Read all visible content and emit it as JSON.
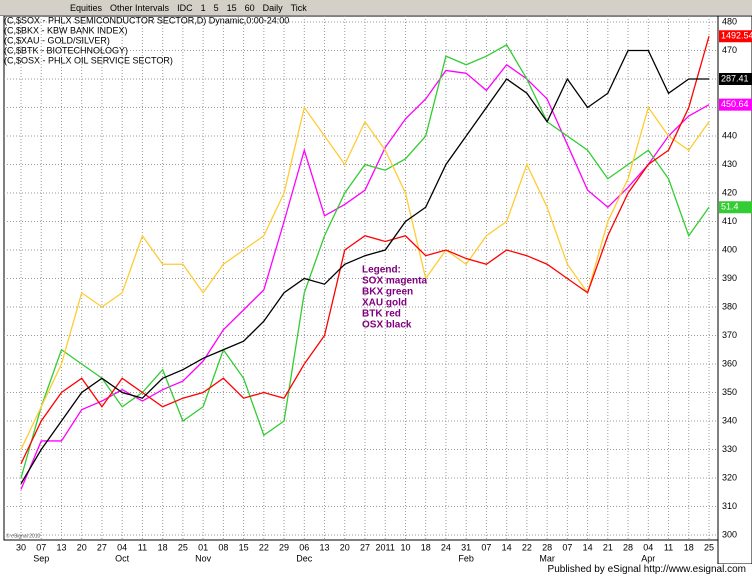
{
  "toolbar": {
    "items": [
      "Equities",
      "Other Intervals",
      "IDC",
      "1",
      "5",
      "15",
      "60",
      "Daily",
      "Tick"
    ]
  },
  "footer": {
    "text": "Published by eSignal  http://www.esignal.com",
    "copyright": "© eSignal 2010"
  },
  "chart_data": {
    "type": "line",
    "headers": [
      "(C,$SOX - PHLX SEMICONDUCTOR SECTOR,D) Dynamic,0:00-24:00",
      "(C,$BKX - KBW BANK INDEX)",
      "(C,$XAU - GOLD/SILVER)",
      "(C,$BTK - BIOTECHNOLOGY)",
      "(C,$OSX - PHLX OIL SERVICE SECTOR)"
    ],
    "annotation": [
      "Legend:",
      "SOX magenta",
      "BKX green",
      "XAU gold",
      "BTK red",
      "OSX black"
    ],
    "categories": [
      "30",
      "07",
      "13",
      "20",
      "27",
      "04",
      "11",
      "18",
      "25",
      "01",
      "08",
      "15",
      "22",
      "29",
      "06",
      "13",
      "20",
      "27",
      "2011",
      "10",
      "18",
      "24",
      "31",
      "07",
      "14",
      "22",
      "28",
      "07",
      "14",
      "21",
      "28",
      "04",
      "11",
      "18",
      "25"
    ],
    "months": [
      null,
      "Sep",
      null,
      null,
      null,
      "Oct",
      null,
      null,
      null,
      "Nov",
      null,
      null,
      null,
      null,
      "Dec",
      null,
      null,
      null,
      null,
      null,
      null,
      null,
      "Feb",
      null,
      null,
      null,
      "Mar",
      null,
      null,
      null,
      null,
      "Apr",
      null,
      null,
      null
    ],
    "series": [
      {
        "name": "SOX",
        "color": "#ff00ff",
        "last_label": "450.64",
        "values": [
          316,
          333,
          333,
          344,
          347,
          351,
          347,
          351,
          354,
          361,
          372,
          379,
          386,
          410,
          435,
          412,
          416,
          421,
          436,
          446,
          453,
          463,
          462,
          456,
          465,
          460,
          453,
          437,
          421,
          415,
          422,
          430,
          440,
          447,
          451
        ]
      },
      {
        "name": "BKX",
        "color": "#33cc33",
        "last_label": "51.4",
        "values": [
          320,
          345,
          365,
          360,
          355,
          345,
          350,
          358,
          340,
          345,
          365,
          355,
          335,
          340,
          385,
          405,
          420,
          430,
          428,
          432,
          440,
          468,
          465,
          468,
          472,
          460,
          445,
          440,
          435,
          425,
          430,
          435,
          425,
          405,
          415
        ]
      },
      {
        "name": "XAU",
        "color": "#ffcc33",
        "values": [
          330,
          345,
          360,
          385,
          380,
          385,
          405,
          395,
          395,
          385,
          395,
          400,
          405,
          420,
          450,
          440,
          430,
          445,
          435,
          420,
          390,
          400,
          395,
          405,
          410,
          430,
          415,
          395,
          385,
          410,
          425,
          450,
          440,
          435,
          445
        ]
      },
      {
        "name": "BTK",
        "color": "#ff0000",
        "last_label": "1492.54",
        "values": [
          325,
          340,
          350,
          355,
          345,
          355,
          350,
          345,
          348,
          350,
          355,
          348,
          350,
          348,
          360,
          370,
          400,
          405,
          403,
          405,
          398,
          400,
          397,
          395,
          400,
          398,
          395,
          390,
          385,
          405,
          420,
          430,
          435,
          450,
          475
        ]
      },
      {
        "name": "OSX",
        "color": "#000000",
        "last_label": "287.41",
        "values": [
          318,
          330,
          340,
          350,
          355,
          350,
          348,
          355,
          358,
          362,
          365,
          368,
          375,
          385,
          390,
          388,
          395,
          398,
          400,
          410,
          415,
          430,
          440,
          450,
          460,
          455,
          445,
          460,
          450,
          455,
          470,
          470,
          455,
          460,
          460
        ]
      }
    ],
    "ylim": [
      300,
      480
    ],
    "yticks": [
      300,
      310,
      320,
      330,
      340,
      350,
      360,
      370,
      380,
      390,
      400,
      410,
      420,
      430,
      440,
      450,
      460,
      470,
      480
    ],
    "grid": true
  }
}
